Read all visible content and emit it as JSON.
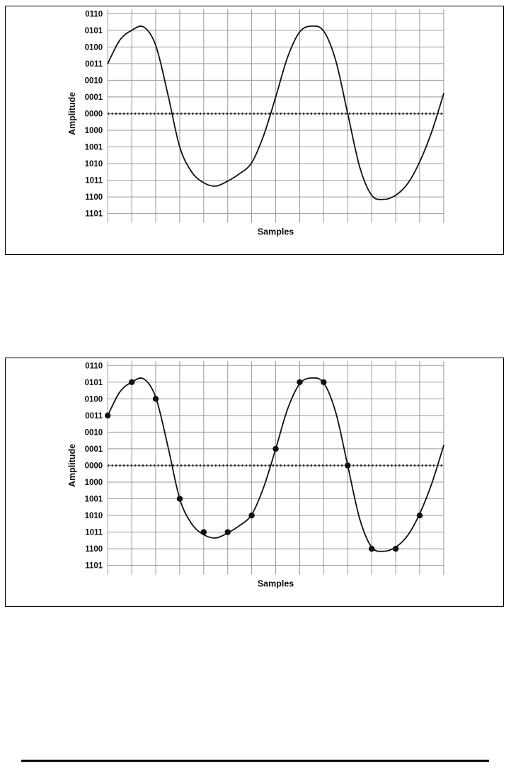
{
  "page": {
    "background": "#ffffff",
    "footer_rule_color": "#000000"
  },
  "style": {
    "box_border_color": "#000000",
    "grid_color": "#999999",
    "axis_text_color": "#111111",
    "wave_color": "#111111",
    "dot_color": "#111111",
    "zero_line_color": "#222222"
  },
  "chart_data": [
    {
      "type": "line",
      "title": "",
      "xlabel": "Samples",
      "ylabel": "Amplitude",
      "y_tick_labels": [
        "0110",
        "0101",
        "0100",
        "0011",
        "0010",
        "0001",
        "0000",
        "1000",
        "1001",
        "1010",
        "1011",
        "1100",
        "1101"
      ],
      "y_tick_rows": [
        6,
        5,
        4,
        3,
        2,
        1,
        0,
        -1,
        -2,
        -3,
        -4,
        -5,
        -6
      ],
      "x_range": [
        0,
        14
      ],
      "x_gridlines": 15,
      "grid": true,
      "legend": "none",
      "zero_line": {
        "row": 0,
        "style": "dotted"
      },
      "wave_points": [
        [
          0,
          3.0
        ],
        [
          0.5,
          4.4
        ],
        [
          1,
          5.0
        ],
        [
          1.5,
          5.2
        ],
        [
          2,
          4.1
        ],
        [
          2.5,
          1.2
        ],
        [
          3,
          -2.0
        ],
        [
          3.5,
          -3.5
        ],
        [
          4,
          -4.15
        ],
        [
          4.5,
          -4.35
        ],
        [
          5,
          -4.05
        ],
        [
          5.5,
          -3.6
        ],
        [
          6,
          -2.95
        ],
        [
          6.5,
          -1.3
        ],
        [
          7,
          1.0
        ],
        [
          7.5,
          3.4
        ],
        [
          8,
          4.9
        ],
        [
          8.5,
          5.25
        ],
        [
          9,
          4.95
        ],
        [
          9.5,
          3.2
        ],
        [
          10,
          0.0
        ],
        [
          10.5,
          -3.2
        ],
        [
          11,
          -4.9
        ],
        [
          11.5,
          -5.15
        ],
        [
          12,
          -4.9
        ],
        [
          12.5,
          -4.2
        ],
        [
          13,
          -2.9
        ],
        [
          13.5,
          -1.1
        ],
        [
          14,
          1.2
        ]
      ],
      "samples": null
    },
    {
      "type": "line",
      "title": "",
      "xlabel": "Samples",
      "ylabel": "Amplitude",
      "y_tick_labels": [
        "0110",
        "0101",
        "0100",
        "0011",
        "0010",
        "0001",
        "0000",
        "1000",
        "1001",
        "1010",
        "1011",
        "1100",
        "1101"
      ],
      "y_tick_rows": [
        6,
        5,
        4,
        3,
        2,
        1,
        0,
        -1,
        -2,
        -3,
        -4,
        -5,
        -6
      ],
      "x_range": [
        0,
        14
      ],
      "x_gridlines": 15,
      "grid": true,
      "legend": "none",
      "zero_line": {
        "row": 0,
        "style": "dotted"
      },
      "wave_points": [
        [
          0,
          3.0
        ],
        [
          0.5,
          4.4
        ],
        [
          1,
          5.0
        ],
        [
          1.5,
          5.2
        ],
        [
          2,
          4.1
        ],
        [
          2.5,
          1.2
        ],
        [
          3,
          -2.0
        ],
        [
          3.5,
          -3.5
        ],
        [
          4,
          -4.15
        ],
        [
          4.5,
          -4.35
        ],
        [
          5,
          -4.05
        ],
        [
          5.5,
          -3.6
        ],
        [
          6,
          -2.95
        ],
        [
          6.5,
          -1.3
        ],
        [
          7,
          1.0
        ],
        [
          7.5,
          3.4
        ],
        [
          8,
          4.9
        ],
        [
          8.5,
          5.25
        ],
        [
          9,
          4.95
        ],
        [
          9.5,
          3.2
        ],
        [
          10,
          0.0
        ],
        [
          10.5,
          -3.2
        ],
        [
          11,
          -4.9
        ],
        [
          11.5,
          -5.15
        ],
        [
          12,
          -4.9
        ],
        [
          12.5,
          -4.2
        ],
        [
          13,
          -2.9
        ],
        [
          13.5,
          -1.1
        ],
        [
          14,
          1.2
        ]
      ],
      "samples": {
        "t": [
          0,
          1,
          2,
          3,
          4,
          5,
          6,
          7,
          8,
          9,
          10,
          11,
          12,
          13
        ],
        "rows": [
          3,
          5,
          4,
          -2,
          -4,
          -4,
          -3,
          1,
          5,
          5,
          0,
          -5,
          -5,
          -3
        ],
        "codes": [
          "0011",
          "0101",
          "0100",
          "1001",
          "1011",
          "1011",
          "1010",
          "0001",
          "0101",
          "0101",
          "0000",
          "1100",
          "1100",
          "1010"
        ]
      }
    }
  ]
}
